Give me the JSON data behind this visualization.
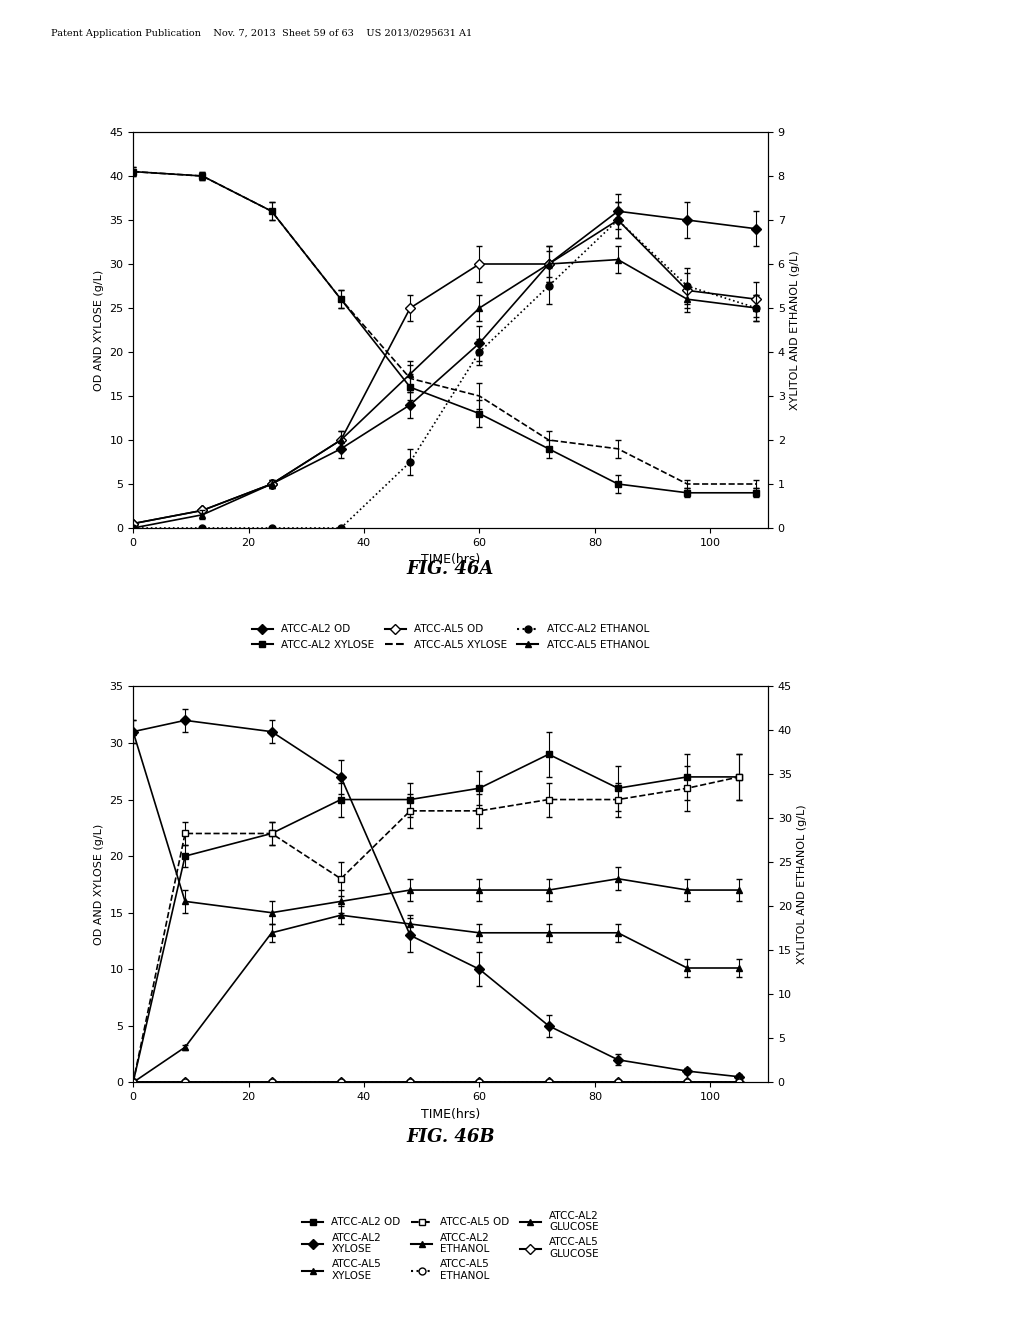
{
  "header_text": "Patent Application Publication    Nov. 7, 2013  Sheet 59 of 63    US 2013/0295631 A1",
  "fig46a": {
    "title": "FIG. 46A",
    "xlabel": "TIME(hrs)",
    "ylabel_left": "OD AND XYLOSE (g/L)",
    "ylabel_right": "XYLITOL AND ETHANOL (g/L)",
    "ylim_left": [
      0,
      45
    ],
    "ylim_right": [
      0,
      9
    ],
    "xlim": [
      0,
      110
    ],
    "yticks_left": [
      0,
      5,
      10,
      15,
      20,
      25,
      30,
      35,
      40,
      45
    ],
    "yticks_right": [
      0,
      1,
      2,
      3,
      4,
      5,
      6,
      7,
      8,
      9
    ],
    "xticks": [
      0,
      20,
      40,
      60,
      80,
      100
    ],
    "series": {
      "atcc_al2_od": {
        "x": [
          0,
          12,
          24,
          36,
          48,
          60,
          72,
          84,
          96,
          108
        ],
        "y": [
          0.5,
          2,
          5,
          9,
          14,
          21,
          30,
          36,
          35,
          34
        ],
        "yerr": [
          0,
          0,
          0.5,
          1,
          1.5,
          2,
          2,
          2,
          2,
          2
        ],
        "label": "ATCC-AL2 OD",
        "color": "#000000",
        "linestyle": "-",
        "marker": "D",
        "markerfacecolor": "#000000",
        "axis": "left"
      },
      "atcc_al2_xylose": {
        "x": [
          0,
          12,
          24,
          36,
          48,
          60,
          72,
          84,
          96,
          108
        ],
        "y": [
          40.5,
          40,
          36,
          26,
          16,
          13,
          9,
          5,
          4,
          4
        ],
        "yerr": [
          0.5,
          0.5,
          1,
          1,
          1.5,
          1.5,
          1,
          1,
          0.5,
          0.5
        ],
        "label": "ATCC-AL2 XYLOSE",
        "color": "#000000",
        "linestyle": "-",
        "marker": "s",
        "markerfacecolor": "#000000",
        "axis": "left"
      },
      "atcc_al5_od": {
        "x": [
          0,
          12,
          24,
          36,
          48,
          60,
          72,
          84,
          96,
          108
        ],
        "y": [
          0.5,
          2,
          5,
          10,
          25,
          30,
          30,
          35,
          27,
          26
        ],
        "yerr": [
          0,
          0,
          0.5,
          1,
          1.5,
          2,
          2,
          2,
          2,
          2
        ],
        "label": "ATCC-AL5 OD",
        "color": "#000000",
        "linestyle": "-",
        "marker": "D",
        "markerfacecolor": "#ffffff",
        "axis": "left"
      },
      "atcc_al5_xylose": {
        "x": [
          0,
          12,
          24,
          36,
          48,
          60,
          72,
          84,
          96,
          108
        ],
        "y": [
          40.5,
          40,
          36,
          26,
          17,
          15,
          10,
          9,
          5,
          5
        ],
        "yerr": [
          0.5,
          0.5,
          1,
          1,
          1.5,
          1.5,
          1,
          1,
          0.5,
          0.5
        ],
        "label": "ATCC-AL5 XYLOSE",
        "color": "#000000",
        "linestyle": "--",
        "marker": null,
        "axis": "left"
      },
      "atcc_al2_ethanol": {
        "x": [
          0,
          12,
          24,
          36,
          48,
          60,
          72,
          84,
          96,
          108
        ],
        "y": [
          0,
          0,
          0,
          0,
          1.5,
          4,
          5.5,
          7,
          5.5,
          5
        ],
        "yerr": [
          0,
          0,
          0,
          0,
          0.3,
          0.3,
          0.4,
          0.4,
          0.4,
          0.3
        ],
        "label": "ATCC-AL2 ETHANOL",
        "color": "#000000",
        "linestyle": ":",
        "marker": "o",
        "markerfacecolor": "#000000",
        "axis": "right"
      },
      "atcc_al5_ethanol": {
        "x": [
          0,
          12,
          24,
          36,
          48,
          60,
          72,
          84,
          96,
          108
        ],
        "y": [
          0,
          0.3,
          1,
          2,
          3.5,
          5,
          6,
          6.1,
          5.2,
          5
        ],
        "yerr": [
          0,
          0.1,
          0.1,
          0.2,
          0.3,
          0.3,
          0.3,
          0.3,
          0.3,
          0.3
        ],
        "label": "ATCC-AL5 ETHANOL",
        "color": "#000000",
        "linestyle": "-",
        "marker": "^",
        "markerfacecolor": "#000000",
        "axis": "right"
      }
    }
  },
  "fig46b": {
    "title": "FIG. 46B",
    "xlabel": "TIME(hrs)",
    "ylabel_left": "OD AND XYLOSE (g/L)",
    "ylabel_right": "XYLITOL AND ETHANOL (g/L)",
    "ylim_left": [
      0,
      35
    ],
    "ylim_right": [
      0,
      45
    ],
    "xlim": [
      0,
      110
    ],
    "yticks_left": [
      0,
      5,
      10,
      15,
      20,
      25,
      30,
      35
    ],
    "yticks_right": [
      0,
      5,
      10,
      15,
      20,
      25,
      30,
      35,
      40,
      45
    ],
    "xticks": [
      0,
      20,
      40,
      60,
      80,
      100
    ],
    "series": {
      "atcc_al2_od": {
        "x": [
          0,
          9,
          24,
          36,
          48,
          60,
          72,
          84,
          96,
          105
        ],
        "y": [
          0,
          20,
          22,
          25,
          25,
          26,
          29,
          26,
          27,
          27
        ],
        "yerr": [
          0,
          1,
          1,
          1.5,
          1.5,
          1.5,
          2,
          2,
          2,
          2
        ],
        "label": "ATCC-AL2 OD",
        "color": "#000000",
        "linestyle": "-",
        "marker": "s",
        "markerfacecolor": "#000000",
        "axis": "left"
      },
      "atcc_al5_od": {
        "x": [
          0,
          9,
          24,
          36,
          48,
          60,
          72,
          84,
          96,
          105
        ],
        "y": [
          0,
          22,
          22,
          18,
          24,
          24,
          25,
          25,
          26,
          27
        ],
        "yerr": [
          0,
          1,
          1,
          1.5,
          1.5,
          1.5,
          1.5,
          1.5,
          2,
          2
        ],
        "label": "ATCC-AL5 OD",
        "color": "#000000",
        "linestyle": "--",
        "marker": "s",
        "markerfacecolor": "#ffffff",
        "axis": "left"
      },
      "atcc_al2_glucose": {
        "x": [
          0,
          9,
          24,
          36,
          48,
          60,
          72,
          84,
          96,
          105
        ],
        "y": [
          0,
          0.3,
          0.2,
          0.2,
          0.2,
          0.2,
          0.2,
          0.2,
          0.2,
          0.2
        ],
        "yerr": [
          0,
          0,
          0,
          0,
          0,
          0,
          0,
          0,
          0,
          0
        ],
        "label": "ATCC-AL2 GLUCOSE",
        "color": "#000000",
        "linestyle": "-",
        "marker": "^",
        "markerfacecolor": "#000000",
        "axis": "left"
      },
      "atcc_al2_xylose": {
        "x": [
          0,
          9,
          24,
          36,
          48,
          60,
          72,
          84,
          96,
          105
        ],
        "y": [
          31,
          32,
          31,
          27,
          13,
          10,
          5,
          2,
          1,
          0.5
        ],
        "yerr": [
          1,
          1,
          1,
          1.5,
          1.5,
          1.5,
          1,
          0.5,
          0.3,
          0.2
        ],
        "label": "ATCC-AL2 XYLOSE",
        "color": "#000000",
        "linestyle": "-",
        "marker": "D",
        "markerfacecolor": "#000000",
        "axis": "left"
      },
      "atcc_al2_ethanol": {
        "x": [
          0,
          9,
          24,
          36,
          48,
          60,
          72,
          84,
          96,
          105
        ],
        "y": [
          0,
          4.5,
          16,
          19,
          18,
          17,
          17,
          17,
          13,
          13
        ],
        "yerr": [
          0,
          0.3,
          1,
          1,
          1,
          1,
          1,
          1,
          1,
          1
        ],
        "label": "ATCC-AL2 ETHANOL",
        "color": "#000000",
        "linestyle": "-",
        "marker": "^",
        "markerfacecolor": "#000000",
        "axis": "right"
      },
      "atcc_al5_xylose": {
        "x": [
          0,
          9,
          24,
          36,
          48,
          60,
          72,
          84,
          96,
          105
        ],
        "y": [
          31,
          16,
          15,
          16,
          17,
          17,
          17,
          18,
          17,
          17
        ],
        "yerr": [
          1,
          1,
          1,
          1,
          1,
          1,
          1,
          1,
          1,
          1
        ],
        "label": "ATCC-AL5 XYLOSE",
        "color": "#000000",
        "linestyle": "-",
        "marker": "^",
        "markerfacecolor": "#000000",
        "axis": "left"
      },
      "atcc_al5_ethanol": {
        "x": [
          0,
          9,
          24,
          36,
          48,
          60,
          72,
          84,
          96,
          105
        ],
        "y": [
          0,
          0,
          0,
          0.3,
          0.3,
          0.3,
          0.3,
          0.3,
          0.3,
          0.3
        ],
        "yerr": [
          0,
          0,
          0,
          0,
          0,
          0,
          0,
          0,
          0,
          0
        ],
        "label": "ATCC-AL5 ETHANOL",
        "color": "#000000",
        "linestyle": ":",
        "marker": "o",
        "markerfacecolor": "#ffffff",
        "axis": "right"
      },
      "atcc_al5_glucose": {
        "x": [
          0,
          9,
          24,
          36,
          48,
          60,
          72,
          84,
          96,
          105
        ],
        "y": [
          0,
          0,
          0,
          0,
          0,
          0,
          0,
          0,
          0,
          0
        ],
        "yerr": [
          0,
          0,
          0,
          0,
          0,
          0,
          0,
          0,
          0,
          0
        ],
        "label": "ATCC-AL5 GLUCOSE",
        "color": "#000000",
        "linestyle": "-",
        "marker": "D",
        "markerfacecolor": "#ffffff",
        "axis": "left"
      }
    }
  }
}
